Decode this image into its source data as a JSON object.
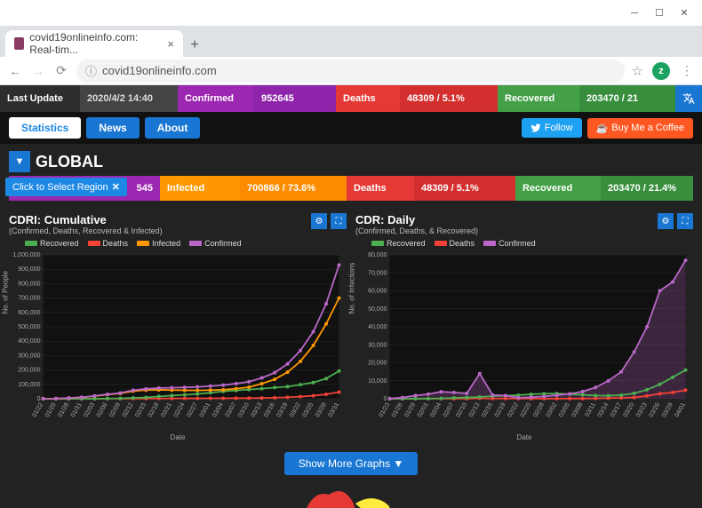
{
  "browser": {
    "tab_title": "covid19onlineinfo.com: Real-tim...",
    "url_host": "covid19onlineinfo.com",
    "profile_letter": "z"
  },
  "statbar": {
    "last_update_label": "Last Update",
    "last_update_value": "2020/4/2 14:40",
    "confirmed_label": "Confirmed",
    "confirmed_value": "952645",
    "deaths_label": "Deaths",
    "deaths_value": "48309 / 5.1%",
    "recovered_label": "Recovered",
    "recovered_value": "203470 / 21"
  },
  "tabs": {
    "statistics": "Statistics",
    "news": "News",
    "about": "About",
    "follow": "Follow",
    "coffee": "Buy Me a Coffee"
  },
  "region": {
    "title": "GLOBAL",
    "select_label": "Click to Select Region",
    "confirmed_tail": "545",
    "infected_label": "Infected",
    "infected_value": "700866 / 73.6%",
    "deaths_label": "Deaths",
    "deaths_value": "48309 / 5.1%",
    "recovered_label": "Recovered",
    "recovered_value": "203470 / 21.4%"
  },
  "chart1": {
    "title": "CDRI: Cumulative",
    "subtitle": "(Confirmed, Deaths, Recovered & Infected)",
    "ylabel": "No. of People",
    "xlabel": "Date",
    "legend": [
      {
        "label": "Recovered",
        "color": "#4caf50"
      },
      {
        "label": "Deaths",
        "color": "#f44336"
      },
      {
        "label": "Infected",
        "color": "#ff9800"
      },
      {
        "label": "Confirmed",
        "color": "#ba68c8"
      }
    ],
    "ylim": [
      0,
      1000000
    ],
    "ytick": 100000,
    "xdates": [
      "01/22",
      "01/25",
      "01/28",
      "01/31",
      "02/03",
      "02/06",
      "02/09",
      "02/12",
      "02/15",
      "02/18",
      "02/21",
      "02/24",
      "02/27",
      "03/01",
      "03/04",
      "03/07",
      "03/10",
      "03/13",
      "03/16",
      "03/19",
      "03/22",
      "03/25",
      "03/28",
      "03/31"
    ],
    "series": {
      "confirmed": [
        555,
        1400,
        5500,
        9900,
        19800,
        30600,
        40100,
        59200,
        68900,
        74600,
        76400,
        79200,
        82200,
        88100,
        95000,
        105400,
        118200,
        145000,
        181000,
        242000,
        335000,
        466000,
        660000,
        930000
      ],
      "infected": [
        500,
        1300,
        5300,
        9500,
        19000,
        29000,
        37000,
        53000,
        60000,
        62000,
        60000,
        59000,
        58000,
        60000,
        62000,
        70000,
        80000,
        105000,
        135000,
        185000,
        260000,
        370000,
        520000,
        700000
      ],
      "recovered": [
        30,
        50,
        120,
        240,
        600,
        1500,
        3300,
        6200,
        9400,
        16000,
        22000,
        27000,
        33000,
        42000,
        51000,
        58000,
        64000,
        70000,
        78000,
        84000,
        98000,
        113000,
        140000,
        193000
      ],
      "deaths": [
        17,
        40,
        130,
        210,
        420,
        630,
        900,
        1300,
        1600,
        2000,
        2200,
        2600,
        2800,
        3000,
        3300,
        3600,
        4300,
        5400,
        7100,
        9800,
        14600,
        21100,
        30600,
        46000
      ]
    },
    "colors": {
      "confirmed": "#ba68c8",
      "infected": "#ff9800",
      "recovered": "#4caf50",
      "deaths": "#f44336"
    },
    "bg": "#111",
    "grid": "#2a2a2a",
    "tick_color": "#aaa",
    "tick_fontsize": 7
  },
  "chart2": {
    "title": "CDR: Daily",
    "subtitle": "(Confirmed, Deaths, & Recovered)",
    "ylabel": "No. of Infections",
    "xlabel": "Date",
    "legend": [
      {
        "label": "Recovered",
        "color": "#4caf50"
      },
      {
        "label": "Deaths",
        "color": "#f44336"
      },
      {
        "label": "Confirmed",
        "color": "#ba68c8"
      }
    ],
    "ylim": [
      0,
      80000
    ],
    "ytick": 10000,
    "xdates": [
      "01/23",
      "01/26",
      "01/29",
      "02/01",
      "02/04",
      "02/07",
      "02/10",
      "02/13",
      "02/16",
      "02/19",
      "02/22",
      "02/25",
      "02/28",
      "03/02",
      "03/05",
      "03/08",
      "03/11",
      "03/14",
      "03/17",
      "03/20",
      "03/23",
      "03/26",
      "03/29",
      "04/01"
    ],
    "series": {
      "confirmed": [
        100,
        700,
        1800,
        2600,
        3900,
        3500,
        3000,
        14000,
        2100,
        1800,
        600,
        900,
        1300,
        2000,
        2800,
        4000,
        6300,
        10000,
        15000,
        26000,
        40000,
        60000,
        65000,
        77000
      ],
      "recovered": [
        2,
        10,
        40,
        70,
        200,
        500,
        700,
        1000,
        1500,
        1700,
        2000,
        2500,
        2800,
        2900,
        2600,
        2200,
        1800,
        1700,
        2000,
        3000,
        5000,
        8000,
        12000,
        16000
      ],
      "deaths": [
        8,
        15,
        25,
        45,
        65,
        85,
        95,
        250,
        140,
        110,
        100,
        110,
        40,
        60,
        80,
        100,
        200,
        350,
        500,
        700,
        1600,
        2800,
        3500,
        4800
      ]
    },
    "colors": {
      "confirmed": "#ba68c8",
      "recovered": "#4caf50",
      "deaths": "#f44336"
    },
    "fill_series": "confirmed",
    "fill_opacity": 0.25,
    "bg": "#111",
    "grid": "#2a2a2a",
    "tick_color": "#aaa",
    "tick_fontsize": 7
  },
  "showmore": "Show More Graphs ▼"
}
